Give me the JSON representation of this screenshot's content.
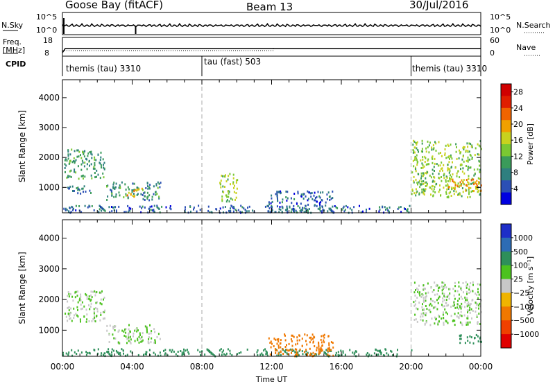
{
  "header": {
    "station": "Goose Bay (fitACF)",
    "beam": "Beam 13",
    "date": "30/Jul/2016"
  },
  "noise_panel": {
    "left_label": "N.Sky",
    "left_ticks": [
      "10^5",
      "10^0"
    ],
    "right_label": "N.Search",
    "right_ticks": [
      "10^5",
      "10^0"
    ]
  },
  "freq_panel": {
    "left_label_1": "Freq.",
    "left_label_2": "[MHz]",
    "left_ticks": [
      "18",
      "8"
    ],
    "right_label": "Nave",
    "right_ticks": [
      "60",
      "0"
    ]
  },
  "cpid": {
    "label": "CPID",
    "segments": [
      "themis (tau) 3310",
      "tau (fast) 503",
      "themis (tau) 3310"
    ]
  },
  "chart_data": [
    {
      "type": "heatmap",
      "panel": "power",
      "ylabel": "Slant Range [km]",
      "xlabel": "",
      "x_ticks": [
        "00:00",
        "04:00",
        "08:00",
        "12:00",
        "16:00",
        "20:00",
        "00:00"
      ],
      "y_ticks": [
        1000,
        2000,
        3000,
        4000
      ],
      "ylim": [
        150,
        4600
      ],
      "xlim_hours": [
        0,
        24
      ],
      "colorbar": {
        "label": "Power [dB]",
        "ticks": [
          4,
          8,
          12,
          16,
          20,
          24,
          28
        ],
        "range": [
          0,
          30
        ],
        "colors": [
          "#0000e0",
          "#2b4fb5",
          "#2f7f7f",
          "#3a9b5a",
          "#7ac832",
          "#c8d21e",
          "#f0a000",
          "#f06400",
          "#e01e00",
          "#d00000"
        ]
      },
      "regions": [
        {
          "t_start": 0.1,
          "t_end": 2.4,
          "r_start": 1300,
          "r_end": 2300,
          "level": 10
        },
        {
          "t_start": 0.2,
          "t_end": 1.6,
          "r_start": 800,
          "r_end": 1100,
          "level": 8
        },
        {
          "t_start": 2.5,
          "t_end": 5.6,
          "r_start": 600,
          "r_end": 1200,
          "level": 9
        },
        {
          "t_start": 3.6,
          "t_end": 4.6,
          "r_start": 700,
          "r_end": 1000,
          "level": 18
        },
        {
          "t_start": 0.0,
          "t_end": 20.0,
          "r_start": 180,
          "r_end": 420,
          "level": 6
        },
        {
          "t_start": 9.0,
          "t_end": 10.0,
          "r_start": 500,
          "r_end": 1500,
          "level": 14
        },
        {
          "t_start": 11.8,
          "t_end": 15.5,
          "r_start": 180,
          "r_end": 900,
          "level": 6
        },
        {
          "t_start": 20.0,
          "t_end": 24.0,
          "r_start": 700,
          "r_end": 2600,
          "level": 14
        },
        {
          "t_start": 22.0,
          "t_end": 24.0,
          "r_start": 900,
          "r_end": 1300,
          "level": 20
        }
      ]
    },
    {
      "type": "heatmap",
      "panel": "velocity",
      "ylabel": "Slant Range [km]",
      "xlabel": "Time UT",
      "x_ticks": [
        "00:00",
        "04:00",
        "08:00",
        "12:00",
        "16:00",
        "20:00",
        "00:00"
      ],
      "y_ticks": [
        1000,
        2000,
        3000,
        4000
      ],
      "ylim": [
        150,
        4600
      ],
      "xlim_hours": [
        0,
        24
      ],
      "colorbar": {
        "label": "Velocity [m s⁻¹]",
        "ticks": [
          "1000",
          "500",
          "100",
          "25",
          "−25",
          "−100",
          "−500",
          "−1000"
        ],
        "colors": [
          "#1e2ec8",
          "#2d6cb4",
          "#2e8f5a",
          "#4cc21e",
          "#c8c8c8",
          "#f0b400",
          "#f07800",
          "#f04000",
          "#e00000"
        ]
      },
      "regions": [
        {
          "t_start": 0.1,
          "t_end": 2.4,
          "r_start": 1300,
          "r_end": 2300,
          "level": 25
        },
        {
          "t_start": 2.5,
          "t_end": 5.6,
          "r_start": 600,
          "r_end": 1200,
          "level": 25
        },
        {
          "t_start": 0.0,
          "t_end": 20.0,
          "r_start": 180,
          "r_end": 420,
          "level": 100
        },
        {
          "t_start": 11.8,
          "t_end": 15.5,
          "r_start": 180,
          "r_end": 900,
          "level": -100
        },
        {
          "t_start": 20.0,
          "t_end": 24.0,
          "r_start": 1200,
          "r_end": 2600,
          "level": 25
        },
        {
          "t_start": 22.5,
          "t_end": 24.0,
          "r_start": 600,
          "r_end": 900,
          "level": 100
        }
      ]
    }
  ]
}
